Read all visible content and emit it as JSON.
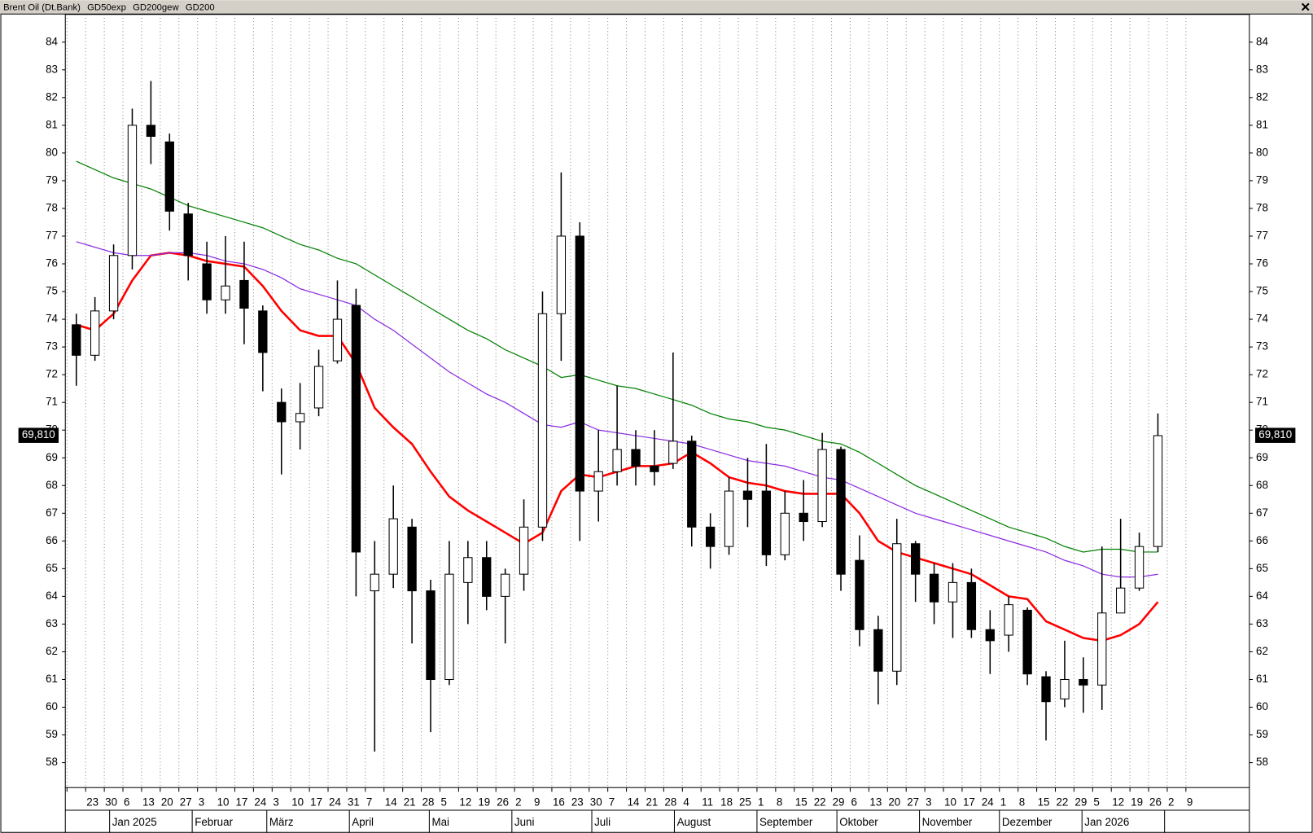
{
  "chart_data": {
    "type": "candlestick",
    "title": "Brent Oil (Dt.Bank)",
    "categories": [
      null,
      "23",
      "30",
      "6",
      "13",
      "20",
      "27",
      "3",
      "10",
      "17",
      "24",
      "3",
      "10",
      "17",
      "24",
      "31",
      "7",
      "14",
      "21",
      "28",
      "5",
      "12",
      "19",
      "26",
      "2",
      "9",
      "16",
      "23",
      "30",
      "7",
      "14",
      "21",
      "28",
      "4",
      "11",
      "18",
      "25",
      "1",
      "8",
      "15",
      "22",
      "29",
      "6",
      "13",
      "20",
      "27",
      "3",
      "10",
      "17",
      "24",
      "1",
      "8",
      "15",
      "22",
      "29",
      "5",
      "12",
      "19",
      "26",
      "2",
      "9"
    ],
    "months": [
      "Jan 2025",
      "Februar",
      "März",
      "April",
      "Mai",
      "Juni",
      "Juli",
      "August",
      "September",
      "Oktober",
      "November",
      "Dezember",
      "Jan 2026"
    ],
    "open": [
      73.8,
      72.7,
      74.3,
      76.3,
      81.0,
      80.4,
      77.8,
      76.0,
      74.7,
      75.4,
      74.3,
      71.0,
      70.3,
      70.8,
      72.5,
      74.5,
      64.2,
      64.8,
      66.5,
      64.2,
      61.0,
      64.5,
      65.4,
      64.0,
      64.8,
      66.5,
      74.2,
      77.0,
      67.8,
      68.5,
      69.3,
      68.7,
      68.8,
      69.6,
      66.5,
      65.8,
      67.8,
      67.8,
      65.5,
      67.0,
      66.7,
      69.3,
      65.3,
      62.8,
      61.3,
      65.9,
      64.8,
      63.8,
      64.5,
      62.8,
      62.6,
      63.5,
      61.1,
      60.3,
      61.0,
      60.8,
      63.4,
      64.3,
      65.8,
      null,
      null
    ],
    "high": [
      74.2,
      74.8,
      76.7,
      81.6,
      82.6,
      80.7,
      78.2,
      76.8,
      77.0,
      76.8,
      74.5,
      71.5,
      71.7,
      72.9,
      75.4,
      75.1,
      66.0,
      68.0,
      66.8,
      64.6,
      66.0,
      66.0,
      66.0,
      65.0,
      67.5,
      75.0,
      79.3,
      77.5,
      70.0,
      71.6,
      70.0,
      70.0,
      72.8,
      69.8,
      67.0,
      68.3,
      69.0,
      69.5,
      67.8,
      68.2,
      69.9,
      69.4,
      66.2,
      63.3,
      66.8,
      66.0,
      65.2,
      65.2,
      65.0,
      63.5,
      64.0,
      63.6,
      61.3,
      62.4,
      61.8,
      65.8,
      66.8,
      66.3,
      70.6,
      null,
      null
    ],
    "low": [
      71.6,
      72.5,
      74.0,
      75.8,
      79.6,
      77.2,
      75.4,
      74.2,
      74.2,
      73.1,
      71.4,
      68.4,
      69.3,
      70.5,
      72.4,
      64.0,
      58.4,
      64.3,
      62.3,
      59.1,
      60.8,
      63.0,
      63.5,
      62.3,
      64.2,
      66.0,
      72.5,
      66.0,
      66.7,
      68.0,
      68.0,
      68.0,
      68.6,
      65.8,
      65.0,
      65.5,
      66.5,
      65.1,
      65.3,
      66.0,
      66.5,
      64.2,
      62.2,
      60.1,
      60.8,
      63.8,
      63.0,
      62.5,
      62.5,
      61.2,
      62.0,
      60.8,
      58.8,
      60.0,
      59.8,
      59.9,
      63.4,
      64.2,
      65.6,
      null,
      null
    ],
    "close": [
      72.7,
      74.3,
      76.3,
      81.0,
      80.6,
      77.9,
      76.3,
      74.7,
      75.2,
      74.4,
      72.8,
      70.3,
      70.6,
      72.3,
      74.0,
      65.6,
      64.8,
      66.8,
      64.2,
      61.0,
      64.8,
      65.4,
      64.0,
      64.8,
      66.5,
      74.2,
      77.0,
      67.8,
      68.5,
      69.3,
      68.7,
      68.5,
      69.6,
      66.5,
      65.8,
      67.8,
      67.5,
      65.5,
      67.0,
      66.7,
      69.3,
      64.8,
      62.8,
      61.3,
      65.9,
      64.8,
      63.8,
      64.5,
      62.8,
      62.4,
      63.7,
      61.2,
      60.2,
      61.0,
      60.8,
      63.4,
      64.3,
      65.8,
      69.8,
      null,
      null
    ],
    "series": [
      {
        "name": "GD50exp",
        "color": "#ff0000",
        "values": [
          73.8,
          73.6,
          74.2,
          75.4,
          76.3,
          76.4,
          76.3,
          76.1,
          76.0,
          75.9,
          75.2,
          74.3,
          73.6,
          73.4,
          73.4,
          72.4,
          70.8,
          70.1,
          69.5,
          68.5,
          67.6,
          67.1,
          66.7,
          66.3,
          65.9,
          66.3,
          67.8,
          68.4,
          68.3,
          68.5,
          68.7,
          68.7,
          68.8,
          69.2,
          68.8,
          68.3,
          68.1,
          68.0,
          67.8,
          67.7,
          67.7,
          67.7,
          67.0,
          66.0,
          65.6,
          65.4,
          65.2,
          65.0,
          64.8,
          64.4,
          64.0,
          63.9,
          63.1,
          62.8,
          62.5,
          62.4,
          62.6,
          63.0,
          63.8,
          null,
          null
        ]
      },
      {
        "name": "GD200gew",
        "color": "#8a2be2",
        "values": [
          76.8,
          76.6,
          76.4,
          76.3,
          76.3,
          76.4,
          76.4,
          76.3,
          76.1,
          76.0,
          75.8,
          75.5,
          75.1,
          74.9,
          74.7,
          74.5,
          74.0,
          73.6,
          73.1,
          72.6,
          72.1,
          71.7,
          71.3,
          71.0,
          70.6,
          70.2,
          70.1,
          70.3,
          70.0,
          69.9,
          69.8,
          69.7,
          69.6,
          69.5,
          69.3,
          69.1,
          68.9,
          68.8,
          68.7,
          68.5,
          68.3,
          68.2,
          67.9,
          67.6,
          67.3,
          67.0,
          66.8,
          66.6,
          66.4,
          66.2,
          66.0,
          65.8,
          65.6,
          65.3,
          65.1,
          64.8,
          64.7,
          64.7,
          64.8,
          null,
          null
        ]
      },
      {
        "name": "GD200",
        "color": "#008000",
        "values": [
          79.7,
          79.4,
          79.1,
          78.9,
          78.7,
          78.4,
          78.1,
          77.9,
          77.7,
          77.5,
          77.3,
          77.0,
          76.7,
          76.5,
          76.2,
          76.0,
          75.6,
          75.2,
          74.8,
          74.4,
          74.0,
          73.6,
          73.3,
          72.9,
          72.6,
          72.3,
          71.9,
          72.0,
          71.8,
          71.6,
          71.5,
          71.3,
          71.1,
          70.9,
          70.6,
          70.4,
          70.3,
          70.1,
          70.0,
          69.8,
          69.6,
          69.5,
          69.2,
          68.8,
          68.4,
          68.0,
          67.7,
          67.4,
          67.1,
          66.8,
          66.5,
          66.3,
          66.1,
          65.8,
          65.6,
          65.7,
          65.7,
          65.6,
          65.6,
          null,
          null
        ]
      }
    ],
    "last_price": {
      "value": 69.81,
      "label": "69,810"
    },
    "ylim": [
      57.1,
      85.0
    ],
    "yticks": [
      58,
      59,
      60,
      61,
      62,
      63,
      64,
      65,
      66,
      67,
      68,
      69,
      70,
      71,
      72,
      73,
      74,
      75,
      76,
      77,
      78,
      79,
      80,
      81,
      82,
      83,
      84
    ],
    "grid": true,
    "up_color": "#ffffff",
    "down_color": "#000000"
  }
}
